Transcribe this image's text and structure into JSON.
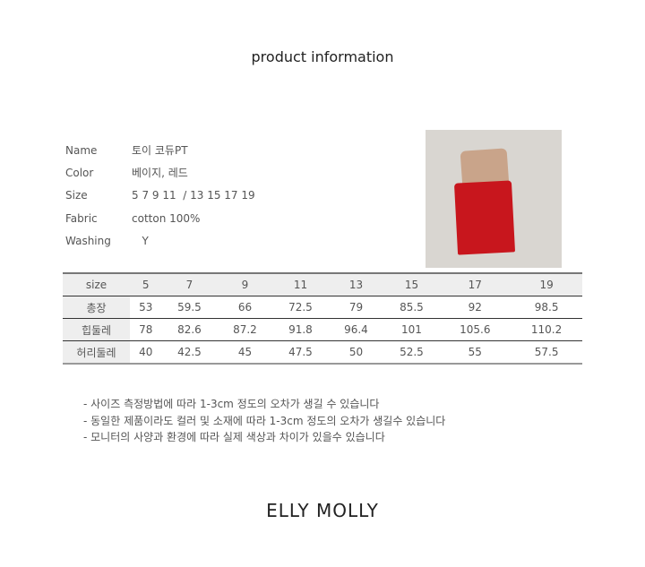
{
  "title": "product information",
  "info": [
    {
      "label": "Name",
      "value": "토이 코듀PT"
    },
    {
      "label": "Color",
      "value": "베이지, 레드"
    },
    {
      "label": "Size",
      "value": "5 7 9 11  / 13 15 17 19"
    },
    {
      "label": "Fabric",
      "value": "cotton 100%"
    },
    {
      "label": "Washing",
      "value": "   Y"
    }
  ],
  "table": {
    "header": [
      "size",
      "5",
      "7",
      "9",
      "11",
      "13",
      "15",
      "17",
      "19"
    ],
    "rows": [
      [
        "총장",
        "53",
        "59.5",
        "66",
        "72.5",
        "79",
        "85.5",
        "92",
        "98.5"
      ],
      [
        "힙둘레",
        "78",
        "82.6",
        "87.2",
        "91.8",
        "96.4",
        "101",
        "105.6",
        "110.2"
      ],
      [
        "허리둘레",
        "40",
        "42.5",
        "45",
        "47.5",
        "50",
        "52.5",
        "55",
        "57.5"
      ]
    ]
  },
  "notes": [
    "- 사이즈 측정방법에 따라 1-3cm 정도의 오차가 생길 수 있습니다",
    "- 동일한 제품이라도 컬러 및 소재에 따라 1-3cm 정도의 오차가 생길수 있습니다",
    "- 모니터의 사양과 환경에 따라 실제 색상과 차이가 있을수 있습니다"
  ],
  "brand": "ELLY MOLLY"
}
